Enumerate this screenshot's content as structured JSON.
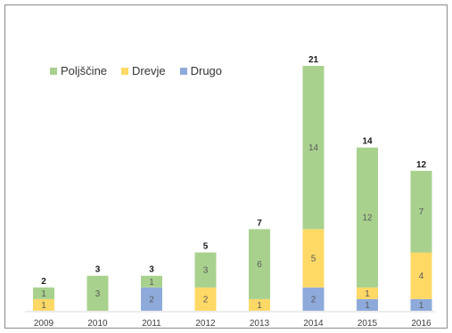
{
  "chart_data": {
    "type": "bar",
    "stacked": true,
    "title": "",
    "xlabel": "",
    "ylabel": "",
    "categories": [
      "2009",
      "2010",
      "2011",
      "2012",
      "2013",
      "2014",
      "2015",
      "2016"
    ],
    "series": [
      {
        "name": "Drugo",
        "color": "#8eaadb",
        "values": [
          0,
          0,
          2,
          0,
          0,
          2,
          1,
          1
        ]
      },
      {
        "name": "Drevje",
        "color": "#ffd966",
        "values": [
          1,
          0,
          0,
          2,
          1,
          5,
          1,
          4
        ]
      },
      {
        "name": "Poljščine",
        "color": "#a9d18e",
        "values": [
          1,
          3,
          1,
          3,
          6,
          14,
          12,
          7
        ]
      }
    ],
    "totals": [
      2,
      3,
      3,
      5,
      7,
      21,
      14,
      12
    ],
    "legend": {
      "position": "top-left",
      "order": [
        "Poljščine",
        "Drevje",
        "Drugo"
      ]
    },
    "ylim": [
      0,
      22
    ],
    "grid": false
  }
}
